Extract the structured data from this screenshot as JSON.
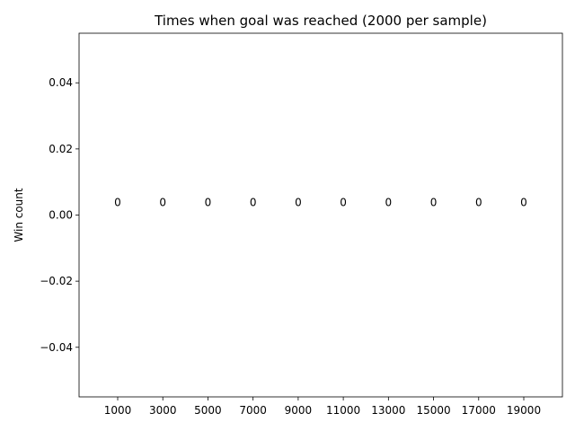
{
  "chart_data": {
    "type": "bar",
    "title": "Times when goal was reached (2000 per sample)",
    "xlabel": "",
    "ylabel": "Win count",
    "categories": [
      "1000",
      "3000",
      "5000",
      "7000",
      "9000",
      "11000",
      "13000",
      "15000",
      "17000",
      "19000"
    ],
    "values": [
      0,
      0,
      0,
      0,
      0,
      0,
      0,
      0,
      0,
      0
    ],
    "data_labels": [
      "0",
      "0",
      "0",
      "0",
      "0",
      "0",
      "0",
      "0",
      "0",
      "0"
    ],
    "ylim": [
      -0.055,
      0.055
    ],
    "yticks": [
      -0.04,
      -0.02,
      0.0,
      0.02,
      0.04
    ],
    "ytick_labels": [
      "−0.04",
      "−0.02",
      "0.00",
      "0.02",
      "0.04"
    ],
    "grid": false,
    "legend": "none"
  }
}
